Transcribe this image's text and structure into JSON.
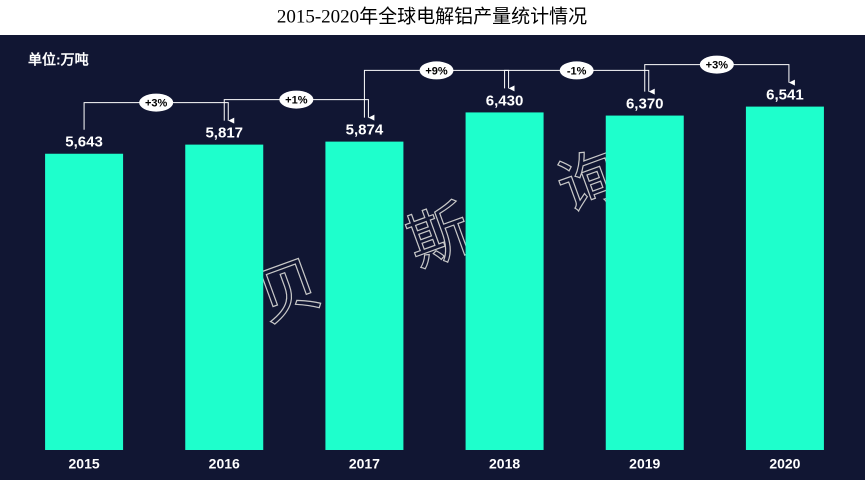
{
  "chart_data": {
    "type": "bar",
    "title": "2015-2020年全球电解铝产量统计情况",
    "unit_label": "单位:万吨",
    "watermark": "贝哲斯咨询",
    "categories": [
      "2015",
      "2016",
      "2017",
      "2018",
      "2019",
      "2020"
    ],
    "values": [
      5643,
      5817,
      5874,
      6430,
      6370,
      6541
    ],
    "value_labels": [
      "5,643",
      "5,817",
      "5,874",
      "6,430",
      "6,370",
      "6,541"
    ],
    "change_labels": [
      "+3%",
      "+1%",
      "+9%",
      "-1%",
      "+3%"
    ],
    "color": "#1effcc",
    "background": "#111633",
    "ylim": [
      0,
      8000
    ]
  }
}
